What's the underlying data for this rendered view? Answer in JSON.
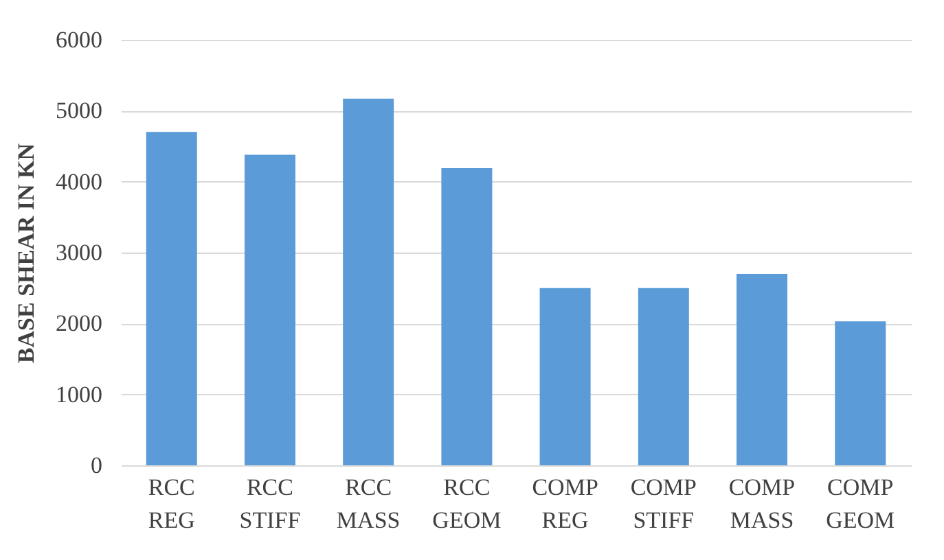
{
  "chart_data": {
    "type": "bar",
    "ylabel": "BASE SHEAR IN KN",
    "categories": [
      "RCC REG",
      "RCC STIFF",
      "RCC MASS",
      "RCC GEOM",
      "COMP REG",
      "COMP STIFF",
      "COMP MASS",
      "COMP GEOM"
    ],
    "values": [
      4700,
      4380,
      5170,
      4190,
      2500,
      2500,
      2700,
      2030
    ],
    "color": "#5b9bd8",
    "ylim": [
      0,
      6000
    ],
    "yticks": [
      0,
      1000,
      2000,
      3000,
      4000,
      5000,
      6000
    ],
    "grid": "y"
  }
}
